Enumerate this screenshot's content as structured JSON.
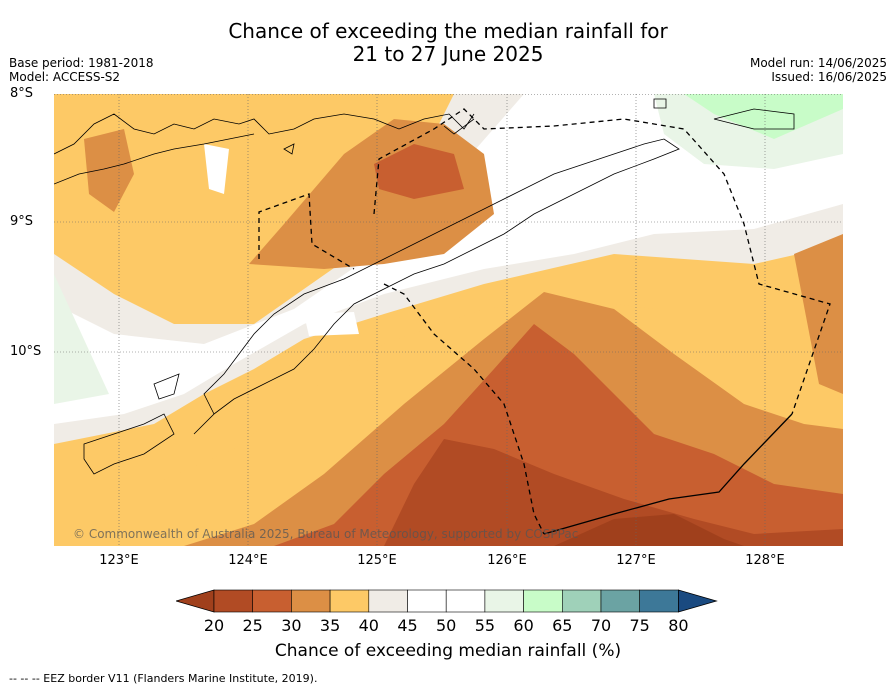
{
  "title_line1": "Chance of exceeding the median rainfall for",
  "title_line2": "21 to 27 June 2025",
  "meta_left": [
    "Base period: 1981-2018",
    "Model: ACCESS-S2"
  ],
  "meta_right": [
    "Model run: 14/06/2025",
    "Issued: 16/06/2025"
  ],
  "lat_labels": [
    "8°S",
    "9°S",
    "10°S"
  ],
  "lon_labels": [
    "123°E",
    "124°E",
    "125°E",
    "126°E",
    "127°E",
    "128°E"
  ],
  "copyright": "© Commonwealth of Australia 2025, Bureau of Meteorology, supported by COSPPac",
  "colorbar": {
    "label": "Chance of exceeding median rainfall (%)",
    "ticks": [
      "20",
      "25",
      "30",
      "35",
      "40",
      "45",
      "50",
      "55",
      "60",
      "65",
      "70",
      "75",
      "80"
    ],
    "colors": [
      "#a0401c",
      "#b14b24",
      "#c85f30",
      "#dc8f45",
      "#fdc966",
      "#f0ece6",
      "#ffffff",
      "#ffffff",
      "#e9f5e7",
      "#c8fcc8",
      "#9fd1b9",
      "#6ba3a3",
      "#3d7898",
      "#1a4a80"
    ]
  },
  "footnote": "--  --  -- EEZ border V11 (Flanders Marine Institute, 2019)."
}
